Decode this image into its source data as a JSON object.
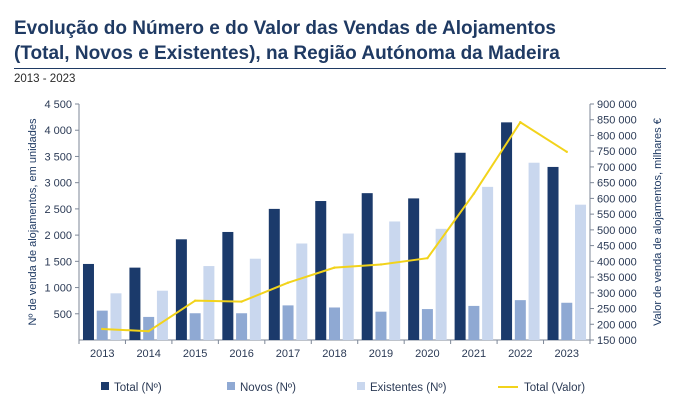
{
  "header": {
    "title_line1": "Evolução do Número e do Valor das Vendas de Alojamentos",
    "title_line2": "(Total, Novos e Existentes), na Região Autónoma da Madeira",
    "subtitle": "2013 - 2023"
  },
  "chart_data": {
    "type": "bar",
    "categories": [
      "2013",
      "2014",
      "2015",
      "2016",
      "2017",
      "2018",
      "2019",
      "2020",
      "2021",
      "2022",
      "2023"
    ],
    "series": [
      {
        "name": "Total (Nº)",
        "axis": "left",
        "color": "#1b3a6b",
        "values": [
          1450,
          1380,
          1920,
          2060,
          2500,
          2650,
          2800,
          2700,
          3570,
          4150,
          3300
        ]
      },
      {
        "name": "Novos (Nº)",
        "axis": "left",
        "color": "#8fa9d3",
        "values": [
          560,
          440,
          510,
          510,
          660,
          620,
          540,
          590,
          650,
          760,
          710
        ]
      },
      {
        "name": "Existentes (Nº)",
        "axis": "left",
        "color": "#c9d7ee",
        "values": [
          890,
          940,
          1410,
          1550,
          1840,
          2030,
          2260,
          2120,
          2920,
          3380,
          2580
        ]
      },
      {
        "name": "Total (Valor)",
        "axis": "right",
        "type": "line",
        "color": "#f2d31b",
        "values": [
          185000,
          178000,
          275000,
          272000,
          332000,
          380000,
          390000,
          410000,
          615000,
          842000,
          748000
        ]
      }
    ],
    "y_left": {
      "label": "Nº de venda de alojamentos, em unidades",
      "min": 0,
      "max": 4500,
      "ticks": [
        500,
        1000,
        1500,
        2000,
        2500,
        3000,
        3500,
        4000,
        4500
      ],
      "tick_labels": [
        "500",
        "1 000",
        "1 500",
        "2 000",
        "2 500",
        "3 000",
        "3 500",
        "4 000",
        "4 500"
      ]
    },
    "y_right": {
      "label": "Valor de venda de alojamentos, milhares €",
      "min": 150000,
      "max": 900000,
      "ticks": [
        150000,
        200000,
        250000,
        300000,
        350000,
        400000,
        450000,
        500000,
        550000,
        600000,
        650000,
        700000,
        750000,
        800000,
        850000,
        900000
      ],
      "tick_labels": [
        "150 000",
        "200 000",
        "250 000",
        "300 000",
        "350 000",
        "400 000",
        "450 000",
        "500 000",
        "550 000",
        "600 000",
        "650 000",
        "700 000",
        "750 000",
        "800 000",
        "850 000",
        "900 000"
      ]
    },
    "legend_position": "bottom",
    "grid": false
  }
}
